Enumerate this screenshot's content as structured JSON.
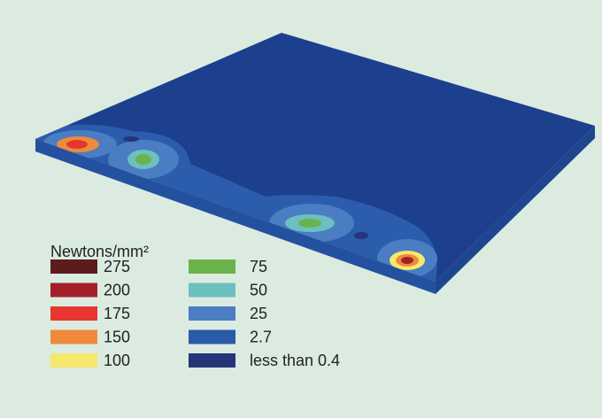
{
  "legend": {
    "title": "Newtons/mm²",
    "items": [
      {
        "label": "275",
        "color": "#5b1c1d"
      },
      {
        "label": "200",
        "color": "#a3202b"
      },
      {
        "label": "175",
        "color": "#e6362f"
      },
      {
        "label": "150",
        "color": "#ee8a3c"
      },
      {
        "label": "100",
        "color": "#f6e86a"
      },
      {
        "label": "75",
        "color": "#6cb24c"
      },
      {
        "label": "50",
        "color": "#6cc0bf"
      },
      {
        "label": "25",
        "color": "#4a7dc2"
      },
      {
        "label": "2.7",
        "color": "#2a5aa8"
      },
      {
        "label": "less than 0.4",
        "color": "#25357a"
      }
    ]
  }
}
